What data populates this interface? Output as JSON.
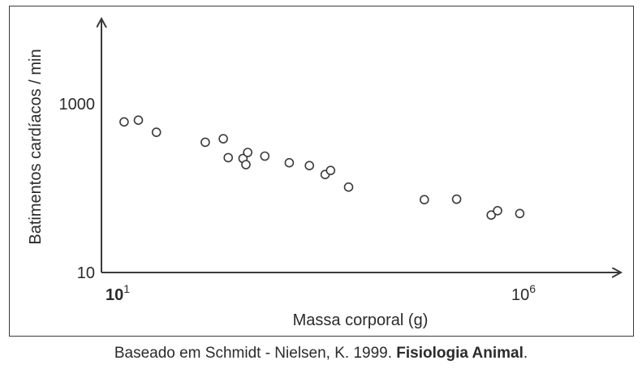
{
  "chart_data": {
    "type": "scatter",
    "xlabel": "Massa corporal (g)",
    "ylabel": "Batimentos cardíacos / min",
    "x_scale": "log",
    "y_scale": "log",
    "xlim": [
      10,
      1000000
    ],
    "ylim": [
      10,
      1000
    ],
    "x_ticks": [
      {
        "value": 10,
        "base": "10",
        "exp": "1"
      },
      {
        "value": 1000000,
        "base": "10",
        "exp": "6"
      }
    ],
    "y_ticks": [
      {
        "value": 10,
        "label": "10"
      },
      {
        "value": 1000,
        "label": "1000"
      }
    ],
    "grid": false,
    "points": [
      {
        "x": 12,
        "y": 610
      },
      {
        "x": 18,
        "y": 640
      },
      {
        "x": 30,
        "y": 460
      },
      {
        "x": 120,
        "y": 350
      },
      {
        "x": 200,
        "y": 385
      },
      {
        "x": 230,
        "y": 230
      },
      {
        "x": 350,
        "y": 225
      },
      {
        "x": 380,
        "y": 190
      },
      {
        "x": 400,
        "y": 265
      },
      {
        "x": 650,
        "y": 240
      },
      {
        "x": 1300,
        "y": 200
      },
      {
        "x": 2300,
        "y": 185
      },
      {
        "x": 3600,
        "y": 145
      },
      {
        "x": 4200,
        "y": 162
      },
      {
        "x": 7000,
        "y": 103
      },
      {
        "x": 60000,
        "y": 73
      },
      {
        "x": 150000,
        "y": 74
      },
      {
        "x": 400000,
        "y": 48
      },
      {
        "x": 480000,
        "y": 54
      },
      {
        "x": 900000,
        "y": 50
      }
    ]
  },
  "caption": {
    "text": "Baseado em Schmidt - Nielsen, K. 1999. ",
    "bold": "Fisiologia Animal",
    "end": "."
  }
}
